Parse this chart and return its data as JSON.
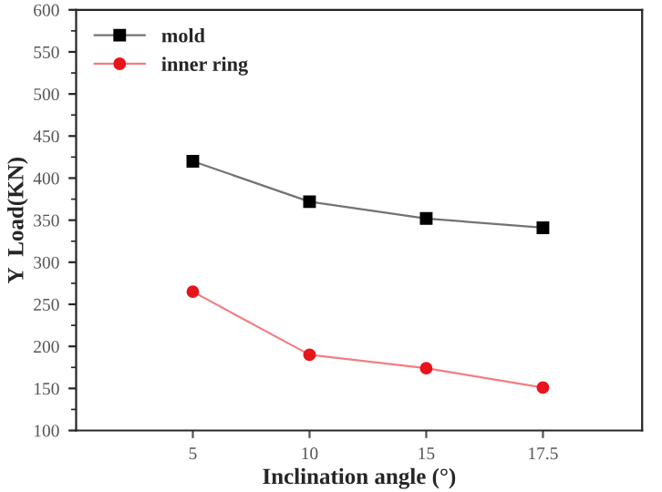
{
  "chart_data": {
    "type": "line",
    "xlabel": "Inclination angle (°)",
    "ylabel": "Y  Load(KN)",
    "categories": [
      "5",
      "10",
      "15",
      "17.5"
    ],
    "series": [
      {
        "name": "mold",
        "color": "#000000",
        "marker": "square",
        "values": [
          420,
          372,
          352,
          341
        ]
      },
      {
        "name": "inner ring",
        "color": "#e8141c",
        "marker": "circle",
        "values": [
          265,
          190,
          174,
          151
        ]
      }
    ],
    "ylim": [
      100,
      600
    ],
    "yticks": [
      100,
      150,
      200,
      250,
      300,
      350,
      400,
      450,
      500,
      550,
      600
    ],
    "grid": false,
    "legend": "top left"
  }
}
